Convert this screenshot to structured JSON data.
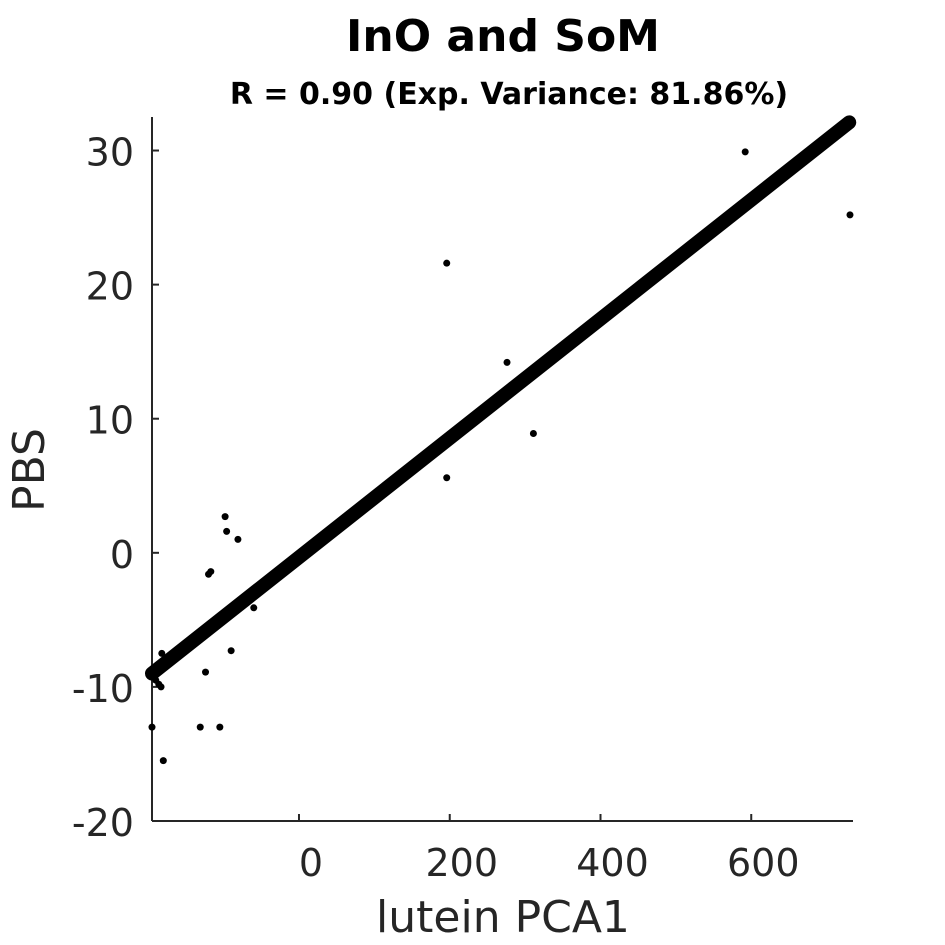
{
  "chart_data": {
    "type": "scatter",
    "title": "InO and SoM",
    "subtitle": "R = 0.90 (Exp. Variance: 81.86%)",
    "xlabel": "lutein PCA1",
    "ylabel": "PBS",
    "xlim": [
      -195,
      735
    ],
    "ylim": [
      -20,
      32.5
    ],
    "xticks": [
      0,
      200,
      400,
      600
    ],
    "xtick_labels": [
      "0",
      "200",
      "400",
      "600"
    ],
    "yticks": [
      -20,
      -10,
      0,
      10,
      20,
      30
    ],
    "ytick_labels": [
      "-20",
      "-10",
      "0",
      "10",
      "20",
      "30"
    ],
    "grid": false,
    "colors": {
      "points": "#000000",
      "fit_line": "#000000",
      "axis": "#262626"
    },
    "fit_line": {
      "x": [
        -195,
        730
      ],
      "y": [
        -9.0,
        32.1
      ]
    },
    "points": {
      "x": [
        -195,
        -190,
        -186,
        -183,
        -182,
        -180,
        -131,
        -124,
        -120,
        -117,
        -105,
        -98,
        -96,
        -90,
        -81,
        -60,
        196,
        196,
        276,
        311,
        592,
        731
      ],
      "y": [
        -13,
        -9.5,
        -9.8,
        -10,
        -7.5,
        -15.5,
        -13,
        -8.9,
        -1.6,
        -1.4,
        -13,
        2.7,
        1.6,
        -7.3,
        1.0,
        -4.1,
        21.6,
        5.6,
        14.2,
        8.9,
        29.9,
        25.2
      ]
    }
  }
}
